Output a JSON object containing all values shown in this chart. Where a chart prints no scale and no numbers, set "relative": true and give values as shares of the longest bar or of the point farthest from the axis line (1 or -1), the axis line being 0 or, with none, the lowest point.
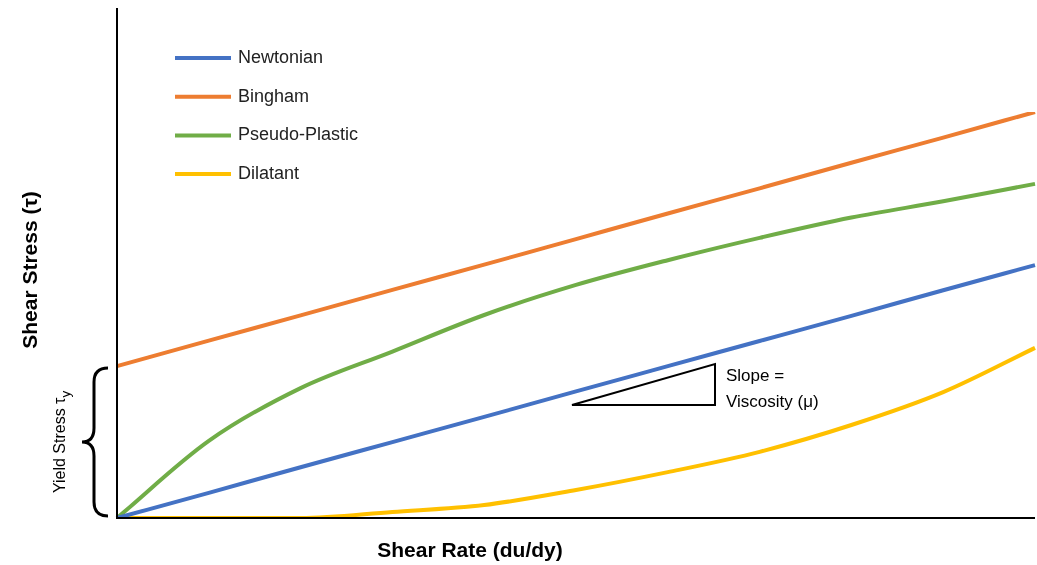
{
  "chart_data": {
    "type": "line",
    "relative": true,
    "ylabel": "Shear Stress (τ)",
    "xlabel": "Shear Rate (du/dy)",
    "categories": [
      null,
      null,
      null,
      null,
      null,
      null,
      null,
      null,
      null,
      null,
      null
    ],
    "series": [
      {
        "name": "Newtonian",
        "color": "#4472c4",
        "values": [
          0,
          0.062,
          0.125,
          0.187,
          0.249,
          0.312,
          0.374,
          0.436,
          0.498,
          0.561,
          0.623
        ]
      },
      {
        "name": "Bingham",
        "color": "#ed7d31",
        "values": [
          0.374,
          0.437,
          0.499,
          0.562,
          0.624,
          0.687,
          0.75,
          0.812,
          0.875,
          0.937,
          1
        ]
      },
      {
        "name": "Pseudo-Plastic",
        "color": "#70ad47",
        "values": [
          0,
          0.19,
          0.32,
          0.41,
          0.5,
          0.574,
          0.635,
          0.69,
          0.74,
          0.78,
          0.823
        ]
      },
      {
        "name": "Dilatant",
        "color": "#ffc000",
        "values": [
          0,
          0,
          0,
          0.015,
          0.032,
          0.069,
          0.113,
          0.163,
          0.229,
          0.31,
          0.419
        ]
      }
    ],
    "annotations": [
      "Slope = Viscosity (μ)",
      "Yield Stress τ$_{y}$"
    ],
    "legend": "top left",
    "marker": "none",
    "line_style": "solid"
  }
}
